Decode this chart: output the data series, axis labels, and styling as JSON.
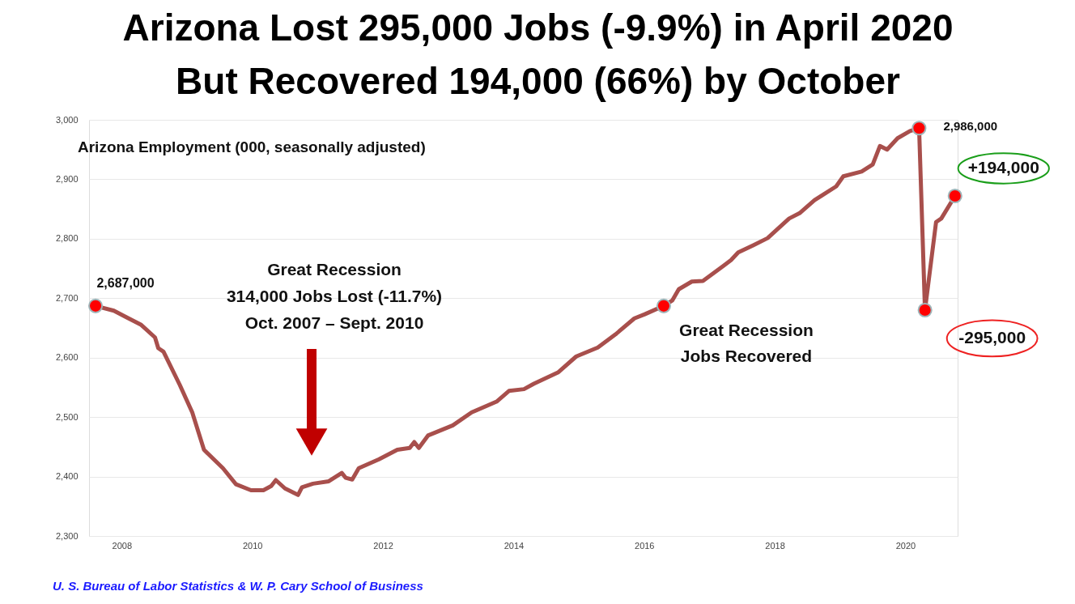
{
  "chart_data": {
    "type": "line",
    "title": "Arizona Lost 295,000 Jobs (-9.9%) in April 2020\nBut Recovered 194,000 (66%) by October",
    "subtitle": "Arizona Employment (000, seasonally adjusted)",
    "series": [
      {
        "color": "#a84f4c",
        "marker": "none",
        "line_style": "solid",
        "x": [
          2007.6,
          2007.88,
          2008.07,
          2008.3,
          2008.51,
          2008.56,
          2008.64,
          2008.89,
          2009.08,
          2009.26,
          2009.55,
          2009.75,
          2009.98,
          2010.17,
          2010.29,
          2010.36,
          2010.5,
          2010.7,
          2010.76,
          2010.93,
          2011.17,
          2011.37,
          2011.43,
          2011.53,
          2011.63,
          2011.94,
          2012.22,
          2012.41,
          2012.48,
          2012.55,
          2012.69,
          2013.07,
          2013.36,
          2013.74,
          2013.93,
          2014.16,
          2014.31,
          2014.68,
          2014.96,
          2015.29,
          2015.56,
          2015.85,
          2016.01,
          2016.3,
          2016.43,
          2016.53,
          2016.73,
          2016.9,
          2017.22,
          2017.33,
          2017.44,
          2017.67,
          2017.89,
          2018.22,
          2018.38,
          2018.61,
          2018.94,
          2019.05,
          2019.33,
          2019.5,
          2019.61,
          2019.72,
          2019.88,
          2020.07,
          2020.21,
          2020.3,
          2020.47,
          2020.55,
          2020.76
        ],
        "values": [
          2687,
          2679,
          2668,
          2655,
          2634,
          2616,
          2610,
          2554,
          2508,
          2445,
          2414,
          2387,
          2377,
          2377,
          2384,
          2394,
          2380,
          2369,
          2382,
          2388,
          2392,
          2406,
          2398,
          2395,
          2414,
          2429,
          2445,
          2448,
          2458,
          2448,
          2469,
          2486,
          2508,
          2526,
          2544,
          2547,
          2556,
          2575,
          2602,
          2617,
          2639,
          2666,
          2673,
          2687,
          2696,
          2715,
          2728,
          2729,
          2755,
          2764,
          2777,
          2789,
          2801,
          2834,
          2843,
          2865,
          2888,
          2905,
          2913,
          2925,
          2956,
          2950,
          2969,
          2981,
          2986,
          2680,
          2828,
          2834,
          2872
        ]
      },
      {
        "type": "scatter",
        "color": "#ff0000",
        "marker": "circle",
        "x": [
          2007.6,
          2016.3,
          2020.21,
          2020.3,
          2020.76
        ],
        "values": [
          2687,
          2687,
          2986,
          2680,
          2872
        ]
      }
    ],
    "xlim": [
      2007.5,
      2020.8
    ],
    "xticks": [
      2008,
      2010,
      2012,
      2014,
      2016,
      2018,
      2020
    ],
    "ylim": [
      2300,
      3000
    ],
    "yticks": [
      {
        "value": 2300,
        "label": "2,300"
      },
      {
        "value": 2400,
        "label": "2,400"
      },
      {
        "value": 2500,
        "label": "2,500"
      },
      {
        "value": 2600,
        "label": "2,600"
      },
      {
        "value": 2700,
        "label": "2,700"
      },
      {
        "value": 2800,
        "label": "2,800"
      },
      {
        "value": 2900,
        "label": "2,900"
      },
      {
        "value": 3000,
        "label": "3,000"
      }
    ],
    "grid": "y",
    "annotations": [
      {
        "text": "2,687,000",
        "x": 2007.6,
        "y": 2687
      },
      "Great Recession\n314,000 Jobs Lost (-11.7%)\nOct. 2007 – Sept. 2010",
      {
        "text": "Great Recession\nJobs Recovered",
        "x": 2016.3,
        "y": 2687
      },
      {
        "text": "2,986,000",
        "x": 2020.21,
        "y": 2986
      },
      {
        "text": "+194,000",
        "x": 2020.76,
        "y": 2872
      },
      {
        "text": "-295,000",
        "x": 2020.3,
        "y": 2680
      },
      "U. S. Bureau of Labor Statistics & W. P. Cary School of Business"
    ]
  }
}
